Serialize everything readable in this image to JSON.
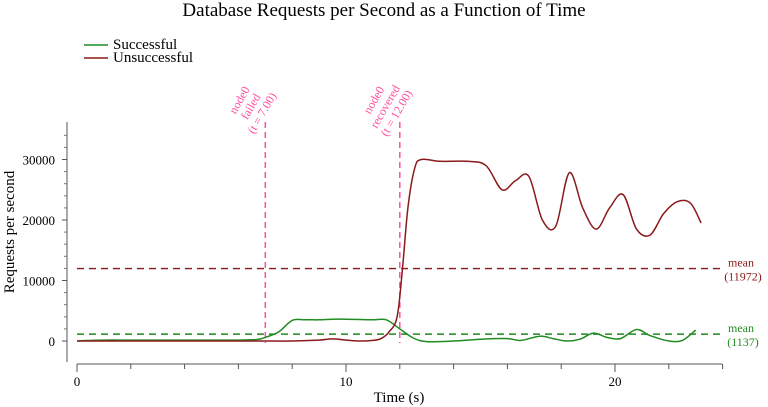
{
  "chart_data": {
    "type": "line",
    "title": "Database Requests per Second as a Function of Time",
    "xlabel": "Time (s)",
    "ylabel": "Requests per second",
    "xlim": [
      0,
      24
    ],
    "ylim": [
      0,
      36000
    ],
    "x_ticks": [
      0,
      10,
      20
    ],
    "y_ticks": [
      0,
      10000,
      20000,
      30000
    ],
    "legend_position": "top-left",
    "series": [
      {
        "name": "Successful",
        "color": "#228b22",
        "points": [
          [
            0,
            0
          ],
          [
            0.5,
            100
          ],
          [
            1,
            150
          ],
          [
            2,
            150
          ],
          [
            3,
            150
          ],
          [
            4,
            150
          ],
          [
            5,
            150
          ],
          [
            6,
            150
          ],
          [
            6.7,
            250
          ],
          [
            7,
            600
          ],
          [
            7.5,
            1500
          ],
          [
            8,
            3400
          ],
          [
            8.5,
            3500
          ],
          [
            9,
            3500
          ],
          [
            9.5,
            3600
          ],
          [
            10,
            3600
          ],
          [
            10.5,
            3550
          ],
          [
            11,
            3500
          ],
          [
            11.5,
            3500
          ],
          [
            12,
            2000
          ],
          [
            12.5,
            500
          ],
          [
            13,
            -100
          ],
          [
            14,
            0
          ],
          [
            15,
            300
          ],
          [
            16,
            400
          ],
          [
            16.5,
            100
          ],
          [
            17.2,
            800
          ],
          [
            17.7,
            400
          ],
          [
            18.2,
            0
          ],
          [
            18.7,
            300
          ],
          [
            19.2,
            1300
          ],
          [
            19.7,
            600
          ],
          [
            20.2,
            400
          ],
          [
            20.8,
            1900
          ],
          [
            21.3,
            900
          ],
          [
            22,
            0
          ],
          [
            22.5,
            100
          ],
          [
            23,
            1800
          ]
        ],
        "mean": 1137,
        "mean_label": "mean",
        "mean_value_label": "(1137)"
      },
      {
        "name": "Unsuccessful",
        "color": "#8b1a1a",
        "points": [
          [
            0,
            0
          ],
          [
            2,
            0
          ],
          [
            4,
            0
          ],
          [
            6,
            0
          ],
          [
            7,
            0
          ],
          [
            8,
            0
          ],
          [
            9,
            150
          ],
          [
            9.5,
            350
          ],
          [
            10,
            150
          ],
          [
            10.5,
            0
          ],
          [
            11,
            100
          ],
          [
            11.3,
            400
          ],
          [
            11.6,
            1500
          ],
          [
            11.9,
            4000
          ],
          [
            12.1,
            12000
          ],
          [
            12.3,
            22000
          ],
          [
            12.55,
            28500
          ],
          [
            12.8,
            30000
          ],
          [
            13.5,
            29700
          ],
          [
            14.5,
            29700
          ],
          [
            15.2,
            29000
          ],
          [
            15.8,
            25000
          ],
          [
            16.3,
            26500
          ],
          [
            16.8,
            27200
          ],
          [
            17.3,
            20000
          ],
          [
            17.8,
            19000
          ],
          [
            18.3,
            27800
          ],
          [
            18.8,
            22000
          ],
          [
            19.3,
            18500
          ],
          [
            19.8,
            22000
          ],
          [
            20.3,
            24200
          ],
          [
            20.8,
            18500
          ],
          [
            21.3,
            17500
          ],
          [
            21.8,
            21000
          ],
          [
            22.3,
            23000
          ],
          [
            22.8,
            22800
          ],
          [
            23.2,
            19500
          ]
        ],
        "mean": 11972,
        "mean_label": "mean",
        "mean_value_label": "(11972)"
      }
    ],
    "annotations": [
      {
        "x": 7,
        "lines": [
          "node0",
          "failed",
          "(t = 7.00)"
        ],
        "color": "#ff4fa0"
      },
      {
        "x": 12,
        "lines": [
          "node0",
          "recovered",
          "(t = 12.00)"
        ],
        "color": "#ff4fa0"
      }
    ]
  }
}
